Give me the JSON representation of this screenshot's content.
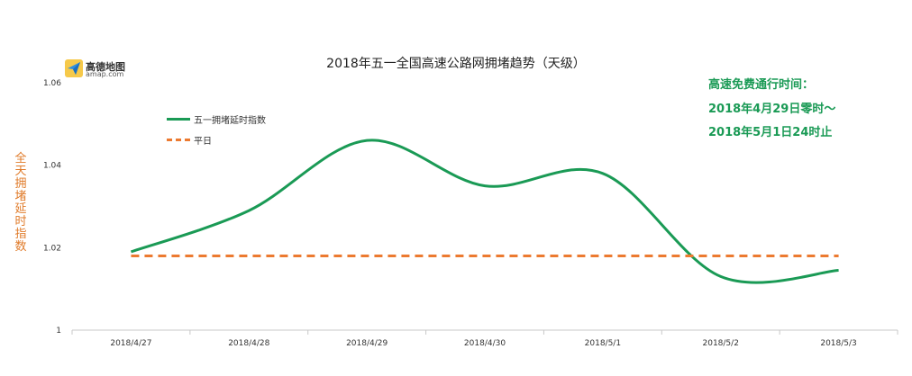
{
  "chart_data": {
    "type": "line",
    "title": "2018年五一全国高速公路网拥堵趋势（天级）",
    "ylabel": "全天拥堵延时指数",
    "xlabel": "",
    "categories": [
      "2018/4/27",
      "2018/4/28",
      "2018/4/29",
      "2018/4/30",
      "2018/5/1",
      "2018/5/2",
      "2018/5/3"
    ],
    "ylim": [
      1,
      1.06
    ],
    "yticks": [
      "1",
      "1.02",
      "1.04",
      "1.06"
    ],
    "grid": false,
    "legend_placement": "top-left",
    "series": [
      {
        "name": "五一拥堵延时指数",
        "values": [
          1.019,
          1.029,
          1.046,
          1.035,
          1.038,
          1.013,
          1.0145
        ],
        "color": "#1a9a55",
        "style": "smooth-solid"
      },
      {
        "name": "平日",
        "values": [
          1.018,
          1.018,
          1.018,
          1.018,
          1.018,
          1.018,
          1.018
        ],
        "color": "#ec7a30",
        "style": "dashed"
      }
    ]
  },
  "logo": {
    "name": "高德地图",
    "domain": "amap.com",
    "icon": "paper-plane-logo-icon"
  },
  "annotation": {
    "line1": "高速免费通行时间：",
    "line2": "2018年4月29日零时～",
    "line3": "2018年5月1日24时止"
  }
}
